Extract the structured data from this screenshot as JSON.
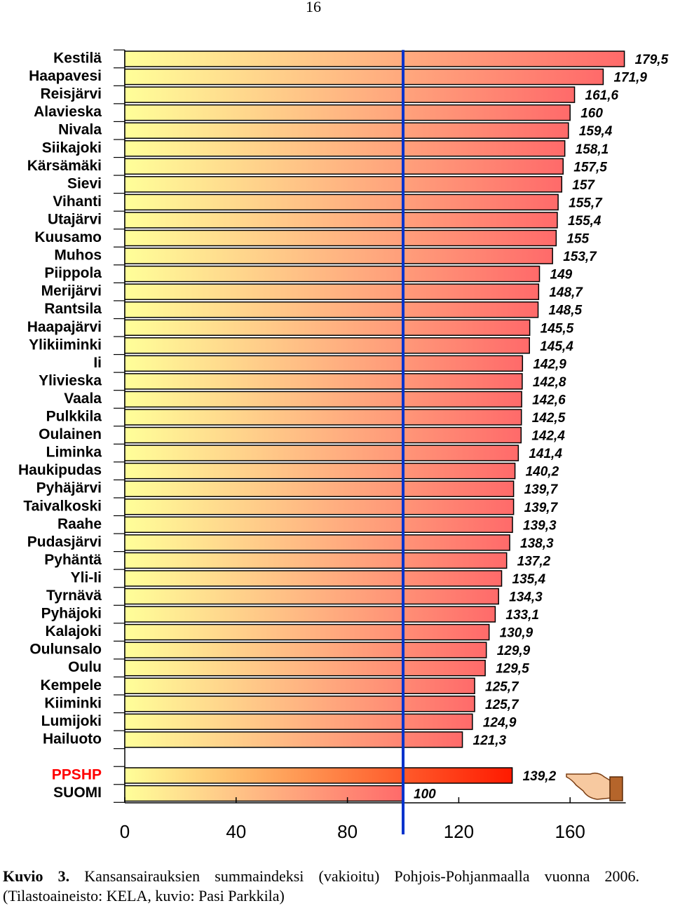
{
  "page_number": "16",
  "chart_data": {
    "type": "barh",
    "categories": [
      "Kestilä",
      "Haapavesi",
      "Reisjärvi",
      "Alavieska",
      "Nivala",
      "Siikajoki",
      "Kärsämäki",
      "Sievi",
      "Vihanti",
      "Utajärvi",
      "Kuusamo",
      "Muhos",
      "Piippola",
      "Merijärvi",
      "Rantsila",
      "Haapajärvi",
      "Ylikiiminki",
      "Ii",
      "Ylivieska",
      "Vaala",
      "Pulkkila",
      "Oulainen",
      "Liminka",
      "Haukipudas",
      "Pyhäjärvi",
      "Taivalkoski",
      "Raahe",
      "Pudasjärvi",
      "Pyhäntä",
      "Yli-Ii",
      "Tyrnävä",
      "Pyhäjoki",
      "Kalajoki",
      "Oulunsalo",
      "Oulu",
      "Kempele",
      "Kiiminki",
      "Lumijoki",
      "Hailuoto",
      null,
      "PPSHP",
      "SUOMI"
    ],
    "values": [
      179.5,
      171.9,
      161.6,
      160,
      159.4,
      158.1,
      157.5,
      157,
      155.7,
      155.4,
      155,
      153.7,
      149,
      148.7,
      148.5,
      145.5,
      145.4,
      142.9,
      142.8,
      142.6,
      142.5,
      142.4,
      141.4,
      140.2,
      139.7,
      139.7,
      139.3,
      138.3,
      137.2,
      135.4,
      134.3,
      133.1,
      130.9,
      129.9,
      129.5,
      125.7,
      125.7,
      124.9,
      121.3,
      null,
      139.2,
      100
    ],
    "value_labels": [
      "179,5",
      "171,9",
      "161,6",
      "160",
      "159,4",
      "158,1",
      "157,5",
      "157",
      "155,7",
      "155,4",
      "155",
      "153,7",
      "149",
      "148,7",
      "148,5",
      "145,5",
      "145,4",
      "142,9",
      "142,8",
      "142,6",
      "142,5",
      "142,4",
      "141,4",
      "140,2",
      "139,7",
      "139,7",
      "139,3",
      "138,3",
      "137,2",
      "135,4",
      "134,3",
      "133,1",
      "130,9",
      "129,9",
      "129,5",
      "125,7",
      "125,7",
      "124,9",
      "121,3",
      null,
      "139,2",
      "100"
    ],
    "bar_start_color": "#ffff99",
    "bar_colors": [
      "#ff6a6a",
      "#ff6a6a",
      "#ff6a6a",
      "#ff6a6a",
      "#ff6a6a",
      "#ff6a6a",
      "#ff6a6a",
      "#ff6a6a",
      "#ff6a6a",
      "#ff6a6a",
      "#ff6a6a",
      "#ff6a6a",
      "#ff6a6a",
      "#ff6a6a",
      "#ff6a6a",
      "#ff6a6a",
      "#ff6a6a",
      "#ff6a6a",
      "#ff6a6a",
      "#ff6a6a",
      "#ff6a6a",
      "#ff6a6a",
      "#ff6a6a",
      "#ff6a6a",
      "#ff6a6a",
      "#ff6a6a",
      "#ff6a6a",
      "#ff6a6a",
      "#ff6a6a",
      "#ff6a6a",
      "#ff6a6a",
      "#ff6a6a",
      "#ff6a6a",
      "#ff6a6a",
      "#ff6a6a",
      "#ff6a6a",
      "#ff6a6a",
      "#ff6a6a",
      "#ff6a6a",
      null,
      "#ff1a00",
      "#ff6a6a"
    ],
    "label_colors": [
      "#000000",
      "#000000",
      "#000000",
      "#000000",
      "#000000",
      "#000000",
      "#000000",
      "#000000",
      "#000000",
      "#000000",
      "#000000",
      "#000000",
      "#000000",
      "#000000",
      "#000000",
      "#000000",
      "#000000",
      "#000000",
      "#000000",
      "#000000",
      "#000000",
      "#000000",
      "#000000",
      "#000000",
      "#000000",
      "#000000",
      "#000000",
      "#000000",
      "#000000",
      "#000000",
      "#000000",
      "#000000",
      "#000000",
      "#000000",
      "#000000",
      "#000000",
      "#000000",
      "#000000",
      "#000000",
      null,
      "#ff0000",
      "#000000"
    ],
    "xlim": [
      0,
      180
    ],
    "xticks": [
      0,
      40,
      80,
      120,
      160
    ],
    "reference_line": {
      "value": 100,
      "color": "#0033cc"
    }
  },
  "caption": {
    "label": "Kuvio 3.",
    "text": "Kansansairauksien summaindeksi (vakioitu) Pohjois-Pohjanmaalla vuonna 2006. (Tilastoaineisto: KELA, kuvio: Pasi Parkkila)"
  }
}
